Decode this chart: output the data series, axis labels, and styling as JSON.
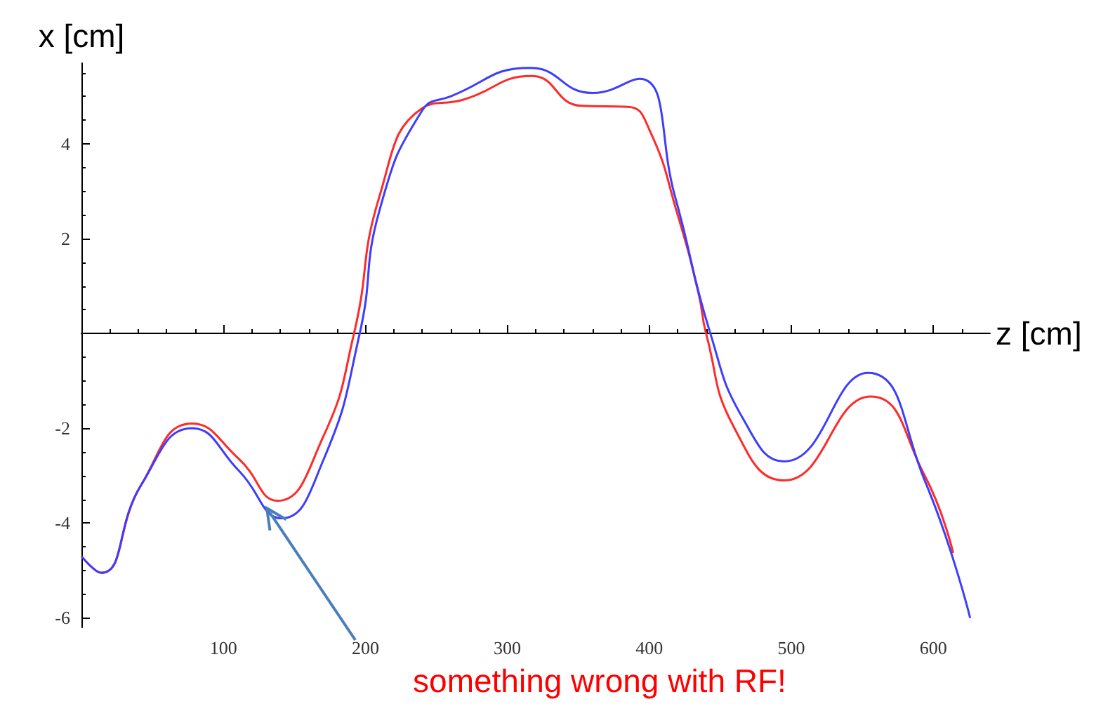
{
  "chart_data": {
    "type": "line",
    "xlabel": "z [cm]",
    "ylabel": "x [cm]",
    "xlim": [
      0,
      640
    ],
    "ylim": [
      -6.2,
      5.7
    ],
    "xticks": [
      100,
      200,
      300,
      400,
      500,
      600
    ],
    "yticks": [
      -6,
      -4,
      -2,
      2,
      4
    ],
    "grid": false,
    "marker": "none",
    "line_style": "solid",
    "series": [
      {
        "color": "#ff2a2a",
        "x": [
          0,
          14,
          42,
          78,
          111,
          138,
          170,
          192,
          210,
          240,
          269,
          317,
          352,
          385,
          400,
          420,
          435,
          440,
          460,
          495,
          556,
          594,
          614
        ],
        "values": [
          -4.7,
          -5.05,
          -3.2,
          -1.9,
          -2.65,
          -3.53,
          -2.2,
          0,
          2.9,
          4.75,
          4.93,
          5.43,
          4.8,
          4.78,
          4.3,
          2.5,
          0.8,
          0,
          -2.0,
          -3.1,
          -1.33,
          -3.0,
          -4.63
        ]
      },
      {
        "color": "#3d3dff",
        "x": [
          0,
          14,
          42,
          78,
          111,
          141,
          170,
          196,
          210,
          240,
          260,
          316,
          360,
          393,
          418,
          443,
          467,
          495,
          554,
          594,
          626
        ],
        "values": [
          -4.7,
          -5.05,
          -3.2,
          -2.0,
          -2.9,
          -3.9,
          -2.7,
          0,
          2.6,
          4.7,
          5.0,
          5.6,
          5.07,
          5.37,
          2.9,
          0,
          -1.85,
          -2.7,
          -0.83,
          -3.1,
          -6.0
        ]
      }
    ],
    "annotations": [
      "something wrong with RF!"
    ]
  }
}
